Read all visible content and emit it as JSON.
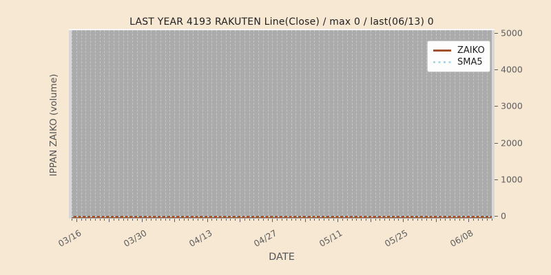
{
  "title": "LAST YEAR 4193 RAKUTEN Line(Close) / max 0 / last(06/13) 0",
  "axes": {
    "x_label": "DATE",
    "y_label": "IPPAN ZAIKO (volume)"
  },
  "legend": {
    "items": [
      {
        "label": "ZAIKO",
        "style": "solid",
        "color": "#a0522d"
      },
      {
        "label": "SMA5",
        "style": "dotted",
        "color": "#add8e6"
      }
    ]
  },
  "chart_data": {
    "type": "line",
    "title": "LAST YEAR 4193 RAKUTEN Line(Close) / max 0 / last(06/13) 0",
    "xlabel": "DATE",
    "ylabel": "IPPAN ZAIKO (volume)",
    "x_start_date": "03/15",
    "x_end_date": "06/13",
    "n_days": 91,
    "x_labeled_ticks": [
      {
        "label": "03/16",
        "day_index": 1
      },
      {
        "label": "03/30",
        "day_index": 15
      },
      {
        "label": "04/13",
        "day_index": 29
      },
      {
        "label": "04/27",
        "day_index": 43
      },
      {
        "label": "05/11",
        "day_index": 57
      },
      {
        "label": "05/25",
        "day_index": 71
      },
      {
        "label": "06/08",
        "day_index": 85
      }
    ],
    "major_tick_every_days": 7,
    "minor_tick_every_days": 1,
    "y_ticks": [
      0,
      1000,
      2000,
      3000,
      4000,
      5000
    ],
    "ylim": [
      -55,
      5040
    ],
    "grid": "vertical-daily-dashed",
    "legend_position": "upper-right",
    "series": [
      {
        "name": "ZAIKO",
        "style": "solid",
        "color": "#a0522d",
        "values_constant": 0
      },
      {
        "name": "SMA5",
        "style": "dotted",
        "color": "#add8e6",
        "values_constant": 0
      }
    ],
    "max": 0,
    "last": {
      "date": "06/13",
      "value": 0
    }
  },
  "colors": {
    "figure_bg": "#f7e8d3",
    "plot_bg": "#ababab",
    "plot_edge": "#d7d7d7",
    "plot_top_edge": "#f7f7f7",
    "gridline": "#c6c6c6",
    "title_text": "#1f1f1f",
    "tick_text": "#5d5d5d",
    "axis_label_text": "#555555",
    "zaiko": "#a0522d",
    "sma5": "#add8e6",
    "legend_bg": "#fdfdfd",
    "legend_border": "#c9c9c9"
  }
}
